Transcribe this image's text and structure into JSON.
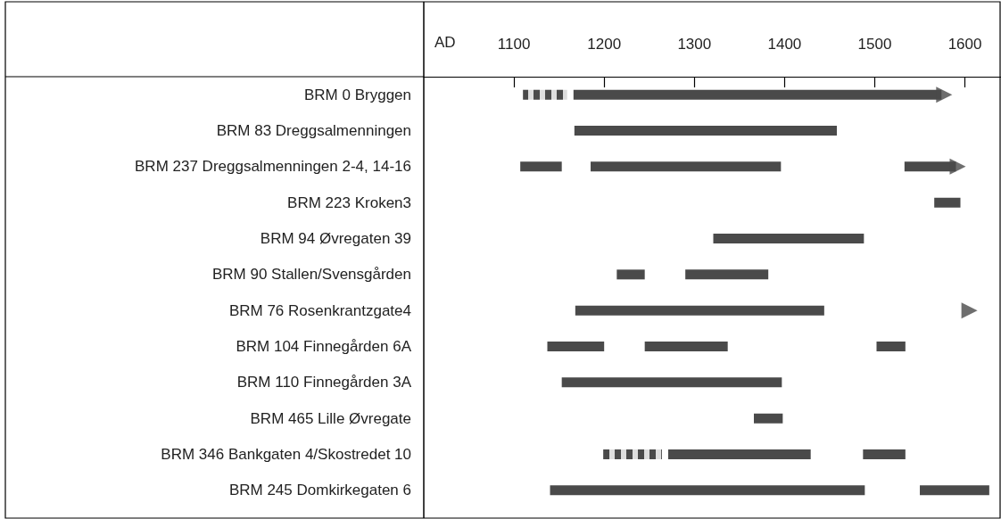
{
  "chart_data": {
    "type": "bar",
    "orientation": "horizontal",
    "xlabel": "AD",
    "xlim": [
      1000,
      1640
    ],
    "xticks": [
      1100,
      1200,
      1300,
      1400,
      1500,
      1600
    ],
    "grid": false,
    "categories": [
      "BRM 0 Bryggen",
      "BRM 83 Dreggsalmenningen",
      "BRM 237 Dreggsalmenningen 2-4, 14-16",
      "BRM 223 Kroken3",
      "BRM 94 Øvregaten 39",
      "BRM 90 Stallen/Svensgården",
      "BRM 76 Rosenkrantzgate4",
      "BRM 104 Finnegården 6A",
      "BRM 110 Finnegården 3A",
      "BRM 465 Lille Øvregate",
      "BRM 346 Bankgaten 4/Skostredet 10",
      "BRM 245 Domkirkegaten 6"
    ],
    "series": [
      {
        "color": "#4a4a4a",
        "line_style": "dotted",
        "base": [
          1110,
          null,
          null,
          null,
          null,
          null,
          null,
          null,
          null,
          null,
          1199,
          null
        ],
        "values": [
          49,
          null,
          null,
          null,
          null,
          null,
          null,
          null,
          null,
          null,
          65,
          null
        ]
      },
      {
        "color": "#4a4a4a",
        "base": [
          1166,
          1167,
          1107,
          1566,
          1321,
          1214,
          1168,
          1137,
          1153,
          1366,
          1271,
          1140
        ],
        "values": [
          408,
          291,
          46,
          29,
          167,
          31,
          276,
          63,
          244,
          32,
          158,
          349
        ]
      },
      {
        "color": "#4a4a4a",
        "base": [
          null,
          null,
          1185,
          null,
          null,
          1290,
          null,
          1245,
          null,
          null,
          1487,
          1550
        ],
        "values": [
          null,
          null,
          211,
          null,
          null,
          92,
          null,
          92,
          null,
          null,
          47,
          77
        ]
      },
      {
        "color": "#4a4a4a",
        "base": [
          null,
          null,
          1533,
          null,
          null,
          null,
          null,
          1502,
          null,
          null,
          null,
          null
        ],
        "values": [
          null,
          null,
          57,
          null,
          null,
          null,
          null,
          32,
          null,
          null,
          null,
          null
        ]
      },
      {
        "type": "scatter",
        "marker": "triangle",
        "color": "#4a4a4a",
        "values": [
          1577,
          null,
          1592,
          null,
          null,
          null,
          1605,
          null,
          null,
          null,
          null,
          null
        ]
      }
    ]
  }
}
